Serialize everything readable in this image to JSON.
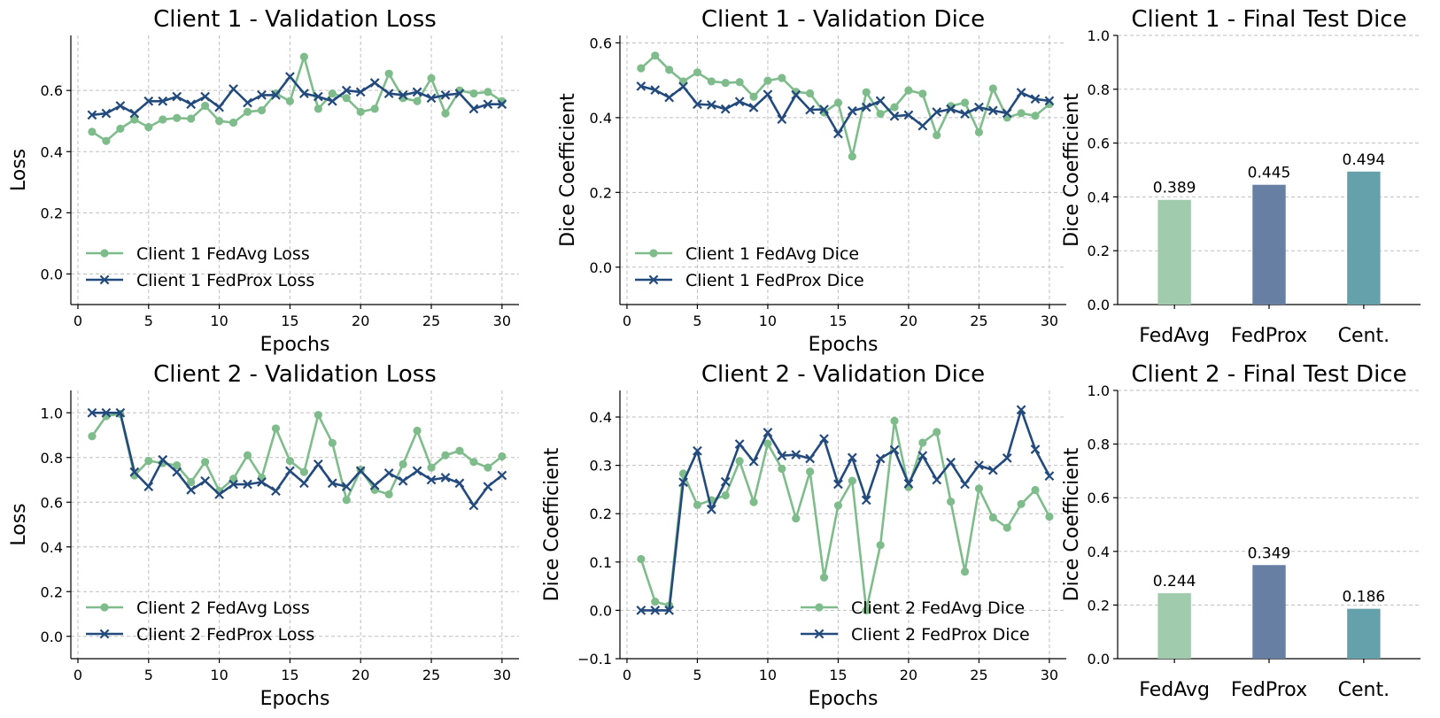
{
  "colors": {
    "fedavg": "#7fbc8c",
    "fedprox": "#234a7c",
    "bar_fedavg": "#a0ccad",
    "bar_fedprox": "#667fa3",
    "bar_cent": "#65a1ab"
  },
  "chart_data": [
    {
      "type": "line",
      "title": "Client 1 - Validation Loss",
      "xlabel": "Epochs",
      "ylabel": "Loss",
      "xlim": [
        0,
        31
      ],
      "ylim": [
        -0.1,
        0.78
      ],
      "xticks": [
        0,
        5,
        10,
        15,
        20,
        25,
        30
      ],
      "yticks": [
        0.0,
        0.2,
        0.4,
        0.6
      ],
      "ytick_labels": [
        "0.0",
        "0.2",
        "0.4",
        "0.6"
      ],
      "legend": "lower-left",
      "grid": true,
      "x": [
        1,
        2,
        3,
        4,
        5,
        6,
        7,
        8,
        9,
        10,
        11,
        12,
        13,
        14,
        15,
        16,
        17,
        18,
        19,
        20,
        21,
        22,
        23,
        24,
        25,
        26,
        27,
        28,
        29,
        30
      ],
      "series": [
        {
          "name": "Client 1 FedAvg Loss",
          "marker": "circle",
          "color_key": "fedavg",
          "values": [
            0.465,
            0.435,
            0.475,
            0.505,
            0.48,
            0.505,
            0.51,
            0.508,
            0.55,
            0.5,
            0.495,
            0.53,
            0.535,
            0.59,
            0.565,
            0.71,
            0.54,
            0.59,
            0.575,
            0.53,
            0.54,
            0.655,
            0.575,
            0.565,
            0.64,
            0.525,
            0.6,
            0.59,
            0.595,
            0.565
          ]
        },
        {
          "name": "Client 1 FedProx Loss",
          "marker": "x",
          "color_key": "fedprox",
          "values": [
            0.52,
            0.525,
            0.55,
            0.525,
            0.565,
            0.565,
            0.58,
            0.555,
            0.58,
            0.545,
            0.605,
            0.56,
            0.585,
            0.585,
            0.645,
            0.59,
            0.58,
            0.565,
            0.6,
            0.595,
            0.625,
            0.59,
            0.585,
            0.595,
            0.575,
            0.585,
            0.59,
            0.54,
            0.555,
            0.555
          ]
        }
      ]
    },
    {
      "type": "line",
      "title": "Client 1 - Validation Dice",
      "xlabel": "Epochs",
      "ylabel": "Dice Coefficient",
      "xlim": [
        0,
        31
      ],
      "ylim": [
        -0.1,
        0.62
      ],
      "xticks": [
        0,
        5,
        10,
        15,
        20,
        25,
        30
      ],
      "yticks": [
        0.0,
        0.2,
        0.4,
        0.6
      ],
      "ytick_labels": [
        "0.0",
        "0.2",
        "0.4",
        "0.6"
      ],
      "legend": "lower-left",
      "grid": true,
      "x": [
        1,
        2,
        3,
        4,
        5,
        6,
        7,
        8,
        9,
        10,
        11,
        12,
        13,
        14,
        15,
        16,
        17,
        18,
        19,
        20,
        21,
        22,
        23,
        24,
        25,
        26,
        27,
        28,
        29,
        30
      ],
      "series": [
        {
          "name": "Client 1 FedAvg Dice",
          "marker": "circle",
          "color_key": "fedavg",
          "values": [
            0.532,
            0.566,
            0.528,
            0.497,
            0.521,
            0.497,
            0.493,
            0.495,
            0.456,
            0.499,
            0.506,
            0.469,
            0.465,
            0.414,
            0.44,
            0.296,
            0.468,
            0.41,
            0.428,
            0.473,
            0.464,
            0.353,
            0.431,
            0.44,
            0.361,
            0.478,
            0.4,
            0.412,
            0.405,
            0.436
          ]
        },
        {
          "name": "Client 1 FedProx Dice",
          "marker": "x",
          "color_key": "fedprox",
          "values": [
            0.484,
            0.474,
            0.454,
            0.483,
            0.436,
            0.434,
            0.423,
            0.443,
            0.427,
            0.462,
            0.396,
            0.461,
            0.421,
            0.422,
            0.357,
            0.418,
            0.428,
            0.445,
            0.404,
            0.407,
            0.378,
            0.415,
            0.423,
            0.41,
            0.428,
            0.419,
            0.412,
            0.467,
            0.45,
            0.445
          ]
        }
      ]
    },
    {
      "type": "bar",
      "title": "Client 1 - Final Test Dice",
      "xlabel": "",
      "ylabel": "Dice Coefficient",
      "ylim": [
        0,
        1.0
      ],
      "yticks": [
        0.0,
        0.2,
        0.4,
        0.6,
        0.8,
        1.0
      ],
      "ytick_labels": [
        "0.0",
        "0.2",
        "0.4",
        "0.6",
        "0.8",
        "1.0"
      ],
      "grid": true,
      "categories": [
        "FedAvg",
        "FedProx",
        "Cent."
      ],
      "values": [
        0.389,
        0.445,
        0.494
      ],
      "value_labels": [
        "0.389",
        "0.445",
        "0.494"
      ],
      "bar_color_keys": [
        "bar_fedavg",
        "bar_fedprox",
        "bar_cent"
      ]
    },
    {
      "type": "line",
      "title": "Client 2 - Validation Loss",
      "xlabel": "Epochs",
      "ylabel": "Loss",
      "xlim": [
        0,
        31
      ],
      "ylim": [
        -0.1,
        1.1
      ],
      "xticks": [
        0,
        5,
        10,
        15,
        20,
        25,
        30
      ],
      "yticks": [
        0.0,
        0.2,
        0.4,
        0.6,
        0.8,
        1.0
      ],
      "ytick_labels": [
        "0.0",
        "0.2",
        "0.4",
        "0.6",
        "0.8",
        "1.0"
      ],
      "legend": "lower-left",
      "grid": true,
      "x": [
        1,
        2,
        3,
        4,
        5,
        6,
        7,
        8,
        9,
        10,
        11,
        12,
        13,
        14,
        15,
        16,
        17,
        18,
        19,
        20,
        21,
        22,
        23,
        24,
        25,
        26,
        27,
        28,
        29,
        30
      ],
      "series": [
        {
          "name": "Client 2 FedAvg Loss",
          "marker": "circle",
          "color_key": "fedavg",
          "values": [
            0.895,
            0.985,
            0.995,
            0.72,
            0.785,
            0.775,
            0.765,
            0.69,
            0.78,
            0.65,
            0.705,
            0.81,
            0.71,
            0.93,
            0.785,
            0.735,
            0.99,
            0.865,
            0.61,
            0.745,
            0.655,
            0.635,
            0.77,
            0.92,
            0.755,
            0.81,
            0.83,
            0.78,
            0.755,
            0.805
          ]
        },
        {
          "name": "Client 2 FedProx Loss",
          "marker": "x",
          "color_key": "fedprox",
          "values": [
            1.0,
            1.0,
            1.0,
            0.735,
            0.67,
            0.79,
            0.735,
            0.655,
            0.695,
            0.635,
            0.68,
            0.68,
            0.69,
            0.65,
            0.74,
            0.685,
            0.77,
            0.685,
            0.67,
            0.74,
            0.675,
            0.73,
            0.695,
            0.74,
            0.7,
            0.71,
            0.685,
            0.585,
            0.67,
            0.72
          ]
        }
      ]
    },
    {
      "type": "line",
      "title": "Client 2 - Validation Dice",
      "xlabel": "Epochs",
      "ylabel": "Dice Coefficient",
      "xlim": [
        0,
        31
      ],
      "ylim": [
        -0.1,
        0.455
      ],
      "xticks": [
        0,
        5,
        10,
        15,
        20,
        25,
        30
      ],
      "yticks": [
        -0.1,
        0.0,
        0.1,
        0.2,
        0.3,
        0.4
      ],
      "ytick_labels": [
        "−0.1",
        "0.0",
        "0.1",
        "0.2",
        "0.3",
        "0.4"
      ],
      "legend": "lower-right",
      "grid": true,
      "x": [
        1,
        2,
        3,
        4,
        5,
        6,
        7,
        8,
        9,
        10,
        11,
        12,
        13,
        14,
        15,
        16,
        17,
        18,
        19,
        20,
        21,
        22,
        23,
        24,
        25,
        26,
        27,
        28,
        29,
        30
      ],
      "series": [
        {
          "name": "Client 2 FedAvg Dice",
          "marker": "circle",
          "color_key": "fedavg",
          "values": [
            0.106,
            0.018,
            0.01,
            0.283,
            0.218,
            0.228,
            0.238,
            0.309,
            0.224,
            0.345,
            0.293,
            0.19,
            0.287,
            0.068,
            0.217,
            0.268,
            0.0,
            0.135,
            0.392,
            0.255,
            0.347,
            0.369,
            0.225,
            0.08,
            0.252,
            0.192,
            0.171,
            0.22,
            0.249,
            0.194
          ]
        },
        {
          "name": "Client 2 FedProx Dice",
          "marker": "x",
          "color_key": "fedprox",
          "values": [
            0.0,
            0.0,
            0.0,
            0.265,
            0.33,
            0.209,
            0.266,
            0.344,
            0.308,
            0.368,
            0.32,
            0.322,
            0.314,
            0.355,
            0.261,
            0.316,
            0.228,
            0.314,
            0.332,
            0.262,
            0.32,
            0.27,
            0.306,
            0.261,
            0.3,
            0.29,
            0.315,
            0.415,
            0.333,
            0.278
          ]
        }
      ]
    },
    {
      "type": "bar",
      "title": "Client 2 - Final Test Dice",
      "xlabel": "",
      "ylabel": "Dice Coefficient",
      "ylim": [
        0,
        1.0
      ],
      "yticks": [
        0.0,
        0.2,
        0.4,
        0.6,
        0.8,
        1.0
      ],
      "ytick_labels": [
        "0.0",
        "0.2",
        "0.4",
        "0.6",
        "0.8",
        "1.0"
      ],
      "grid": true,
      "categories": [
        "FedAvg",
        "FedProx",
        "Cent."
      ],
      "values": [
        0.244,
        0.349,
        0.186
      ],
      "value_labels": [
        "0.244",
        "0.349",
        "0.186"
      ],
      "bar_color_keys": [
        "bar_fedavg",
        "bar_fedprox",
        "bar_cent"
      ]
    }
  ]
}
